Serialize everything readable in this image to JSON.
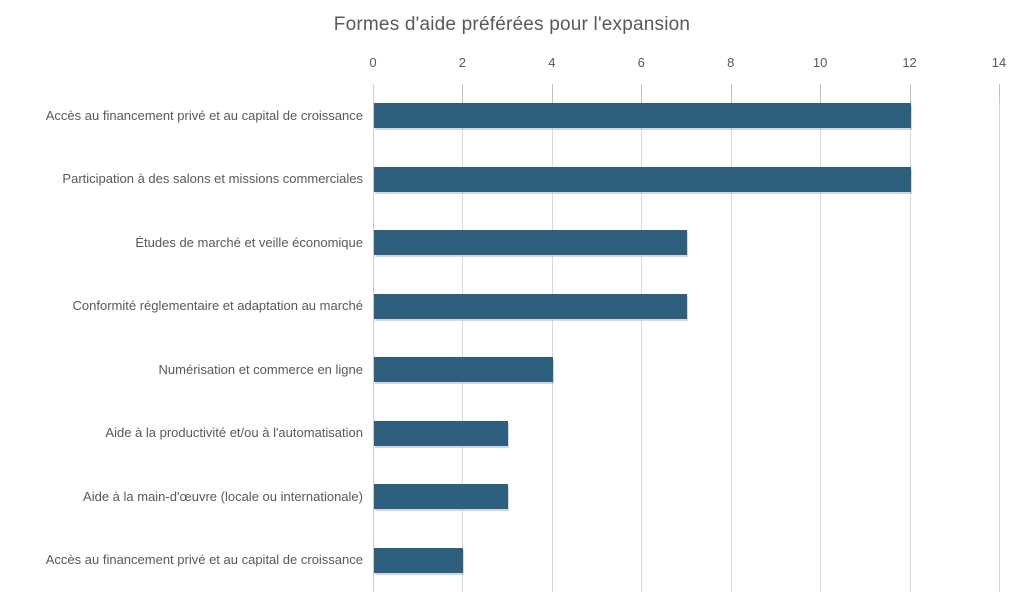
{
  "chart_data": {
    "type": "bar",
    "orientation": "horizontal",
    "title": "Formes d'aide préférées pour l'expansion",
    "categories": [
      "Accès au financement privé et au capital de croissance",
      "Participation à des salons et missions commerciales",
      "Études de marché et veille économique",
      "Conformité réglementaire et adaptation au marché",
      "Numérisation et commerce en ligne",
      "Aide à la productivité et/ou à l'automatisation",
      "Aide à la main-d'œuvre (locale ou internationale)",
      "Accès au financement privé et au capital de croissance"
    ],
    "values": [
      12,
      12,
      7,
      7,
      4,
      3,
      3,
      2
    ],
    "xlabel": "",
    "ylabel": "",
    "xlim": [
      0,
      14
    ],
    "xticks": [
      0,
      2,
      4,
      6,
      8,
      10,
      12,
      14
    ],
    "axis_position": "top",
    "grid": true,
    "legend": false,
    "colors": {
      "bar": "#2E5F7F",
      "gridline": "#D9D9D9",
      "tick_mark": "#C1C1C1",
      "text": "#595959"
    }
  }
}
